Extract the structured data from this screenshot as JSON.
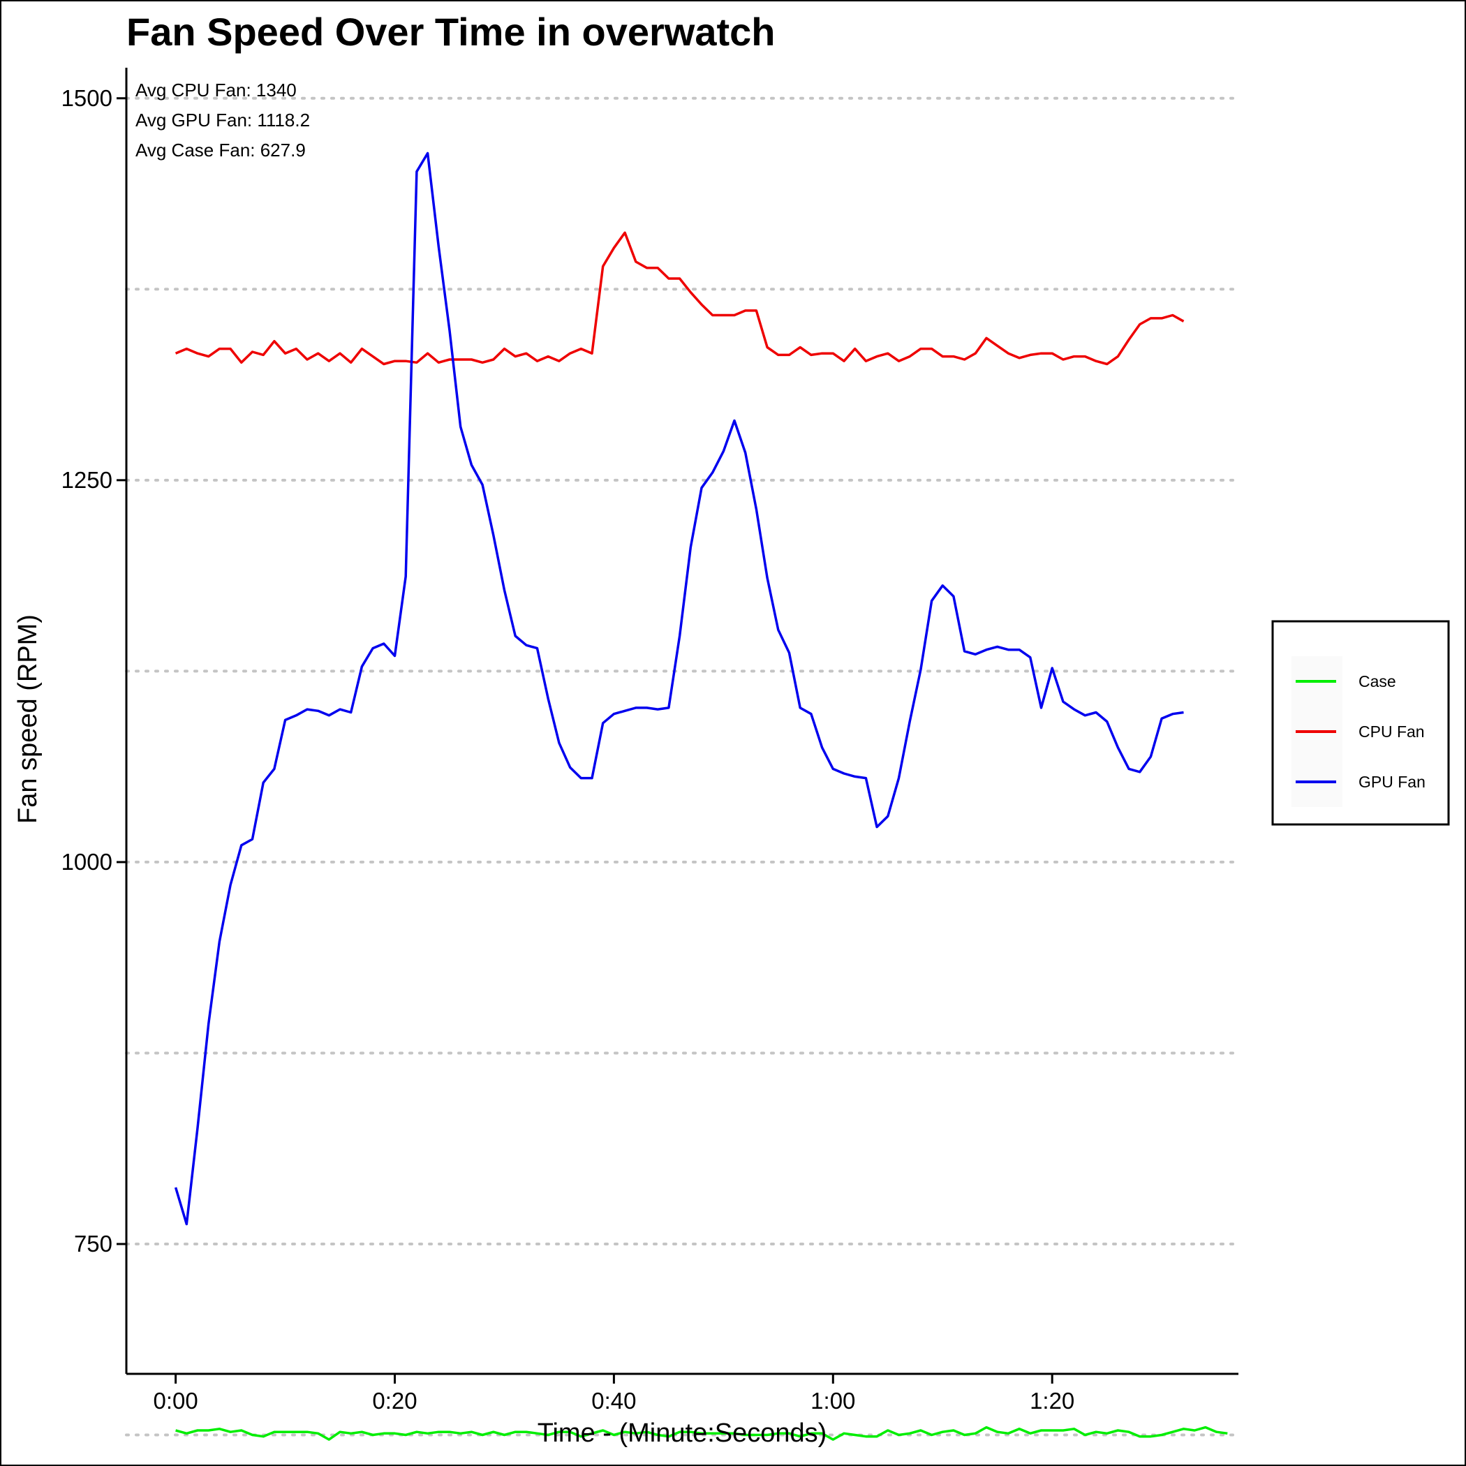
{
  "chart_data": {
    "type": "line",
    "title": "Fan Speed Over Time in overwatch",
    "xlabel": "Time - (Minute:Seconds)",
    "ylabel": "Fan speed (RPM)",
    "xlim": [
      -4.5,
      97
    ],
    "ylim": [
      665,
      1520
    ],
    "x_ticks": [
      0,
      20,
      40,
      60,
      80
    ],
    "x_tick_labels": [
      "0:00",
      "0:20",
      "0:40",
      "1:00",
      "1:20"
    ],
    "y_ticks": [
      750,
      1000,
      1250,
      1500
    ],
    "y_tick_labels": [
      "750",
      "1000",
      "1250",
      "1500"
    ],
    "y_grid_values": [
      625,
      750,
      875,
      1000,
      1125,
      1250,
      1375,
      1500
    ],
    "grid": "horizontal dotted",
    "legend_position": "right",
    "annotations": [
      "Avg CPU Fan: 1340",
      "Avg GPU Fan: 1118.2",
      "Avg Case Fan: 627.9"
    ],
    "series": [
      {
        "name": "Case",
        "color": "#00ee00",
        "points": [
          [
            0,
            628
          ],
          [
            1,
            626
          ],
          [
            2,
            628
          ],
          [
            3,
            628
          ],
          [
            4,
            629
          ],
          [
            5,
            627
          ],
          [
            6,
            628
          ],
          [
            7,
            625
          ],
          [
            8,
            624
          ],
          [
            9,
            627
          ],
          [
            10,
            627
          ],
          [
            11,
            627
          ],
          [
            12,
            627
          ],
          [
            13,
            626
          ],
          [
            14,
            622
          ],
          [
            15,
            627
          ],
          [
            16,
            626
          ],
          [
            17,
            627
          ],
          [
            18,
            625
          ],
          [
            19,
            626
          ],
          [
            20,
            626
          ],
          [
            21,
            625
          ],
          [
            22,
            627
          ],
          [
            23,
            626
          ],
          [
            24,
            627
          ],
          [
            25,
            627
          ],
          [
            26,
            626
          ],
          [
            27,
            627
          ],
          [
            28,
            625
          ],
          [
            29,
            627
          ],
          [
            30,
            625
          ],
          [
            31,
            627
          ],
          [
            32,
            627
          ],
          [
            33,
            626
          ],
          [
            34,
            625
          ],
          [
            35,
            627
          ],
          [
            36,
            627
          ],
          [
            37,
            624
          ],
          [
            38,
            626
          ],
          [
            39,
            628
          ],
          [
            40,
            625
          ],
          [
            41,
            627
          ],
          [
            42,
            626
          ],
          [
            43,
            627
          ],
          [
            44,
            625
          ],
          [
            45,
            624
          ],
          [
            46,
            627
          ],
          [
            47,
            627
          ],
          [
            48,
            626
          ],
          [
            49,
            626
          ],
          [
            50,
            626
          ],
          [
            51,
            626
          ],
          [
            52,
            625
          ],
          [
            53,
            625
          ],
          [
            54,
            625
          ],
          [
            55,
            626
          ],
          [
            56,
            626
          ],
          [
            57,
            624
          ],
          [
            58,
            626
          ],
          [
            59,
            626
          ],
          [
            60,
            622
          ],
          [
            61,
            626
          ],
          [
            62,
            625
          ],
          [
            63,
            624
          ],
          [
            64,
            624
          ],
          [
            65,
            628
          ],
          [
            66,
            625
          ],
          [
            67,
            626
          ],
          [
            68,
            628
          ],
          [
            69,
            625
          ],
          [
            70,
            627
          ],
          [
            71,
            628
          ],
          [
            72,
            625
          ],
          [
            73,
            626
          ],
          [
            74,
            630
          ],
          [
            75,
            627
          ],
          [
            76,
            626
          ],
          [
            77,
            629
          ],
          [
            78,
            626
          ],
          [
            79,
            628
          ],
          [
            80,
            628
          ],
          [
            81,
            628
          ],
          [
            82,
            629
          ],
          [
            83,
            625
          ],
          [
            84,
            627
          ],
          [
            85,
            626
          ],
          [
            86,
            628
          ],
          [
            87,
            627
          ],
          [
            88,
            624
          ],
          [
            89,
            624
          ],
          [
            90,
            625
          ],
          [
            91,
            627
          ],
          [
            92,
            629
          ],
          [
            93,
            628
          ],
          [
            94,
            630
          ],
          [
            95,
            627
          ],
          [
            96,
            626
          ]
        ]
      },
      {
        "name": "CPU Fan",
        "color": "#ee0000",
        "points": [
          [
            0,
            1333
          ],
          [
            1,
            1336
          ],
          [
            2,
            1333
          ],
          [
            3,
            1331
          ],
          [
            4,
            1336
          ],
          [
            5,
            1336
          ],
          [
            6,
            1327
          ],
          [
            7,
            1334
          ],
          [
            8,
            1332
          ],
          [
            9,
            1341
          ],
          [
            10,
            1333
          ],
          [
            11,
            1336
          ],
          [
            12,
            1329
          ],
          [
            13,
            1333
          ],
          [
            14,
            1328
          ],
          [
            15,
            1333
          ],
          [
            16,
            1327
          ],
          [
            17,
            1336
          ],
          [
            18,
            1331
          ],
          [
            19,
            1326
          ],
          [
            20,
            1328
          ],
          [
            21,
            1328
          ],
          [
            22,
            1327
          ],
          [
            23,
            1333
          ],
          [
            24,
            1327
          ],
          [
            25,
            1329
          ],
          [
            26,
            1329
          ],
          [
            27,
            1329
          ],
          [
            28,
            1327
          ],
          [
            29,
            1329
          ],
          [
            30,
            1336
          ],
          [
            31,
            1331
          ],
          [
            32,
            1333
          ],
          [
            33,
            1328
          ],
          [
            34,
            1331
          ],
          [
            35,
            1328
          ],
          [
            36,
            1333
          ],
          [
            37,
            1336
          ],
          [
            38,
            1333
          ],
          [
            39,
            1390
          ],
          [
            40,
            1402
          ],
          [
            41,
            1412
          ],
          [
            42,
            1393
          ],
          [
            43,
            1389
          ],
          [
            44,
            1389
          ],
          [
            45,
            1382
          ],
          [
            46,
            1382
          ],
          [
            47,
            1373
          ],
          [
            48,
            1365
          ],
          [
            49,
            1358
          ],
          [
            50,
            1358
          ],
          [
            51,
            1358
          ],
          [
            52,
            1361
          ],
          [
            53,
            1361
          ],
          [
            54,
            1337
          ],
          [
            55,
            1332
          ],
          [
            56,
            1332
          ],
          [
            57,
            1337
          ],
          [
            58,
            1332
          ],
          [
            59,
            1333
          ],
          [
            60,
            1333
          ],
          [
            61,
            1328
          ],
          [
            62,
            1336
          ],
          [
            63,
            1328
          ],
          [
            64,
            1331
          ],
          [
            65,
            1333
          ],
          [
            66,
            1328
          ],
          [
            67,
            1331
          ],
          [
            68,
            1336
          ],
          [
            69,
            1336
          ],
          [
            70,
            1331
          ],
          [
            71,
            1331
          ],
          [
            72,
            1329
          ],
          [
            73,
            1333
          ],
          [
            74,
            1343
          ],
          [
            75,
            1338
          ],
          [
            76,
            1333
          ],
          [
            77,
            1330
          ],
          [
            78,
            1332
          ],
          [
            79,
            1333
          ],
          [
            80,
            1333
          ],
          [
            81,
            1329
          ],
          [
            82,
            1331
          ],
          [
            83,
            1331
          ],
          [
            84,
            1328
          ],
          [
            85,
            1326
          ],
          [
            86,
            1331
          ],
          [
            87,
            1342
          ],
          [
            88,
            1352
          ],
          [
            89,
            1356
          ],
          [
            90,
            1356
          ],
          [
            91,
            1358
          ],
          [
            92,
            1354
          ]
        ]
      },
      {
        "name": "GPU Fan",
        "color": "#0000ee",
        "points": [
          [
            0,
            787
          ],
          [
            1,
            763
          ],
          [
            2,
            826
          ],
          [
            3,
            894
          ],
          [
            4,
            948
          ],
          [
            5,
            985
          ],
          [
            6,
            1011
          ],
          [
            7,
            1015
          ],
          [
            8,
            1052
          ],
          [
            9,
            1061
          ],
          [
            10,
            1093
          ],
          [
            11,
            1096
          ],
          [
            12,
            1100
          ],
          [
            13,
            1099
          ],
          [
            14,
            1096
          ],
          [
            15,
            1100
          ],
          [
            16,
            1098
          ],
          [
            17,
            1128
          ],
          [
            18,
            1140
          ],
          [
            19,
            1143
          ],
          [
            20,
            1135
          ],
          [
            21,
            1187
          ],
          [
            22,
            1452
          ],
          [
            23,
            1464
          ],
          [
            24,
            1403
          ],
          [
            25,
            1348
          ],
          [
            26,
            1285
          ],
          [
            27,
            1260
          ],
          [
            28,
            1247
          ],
          [
            29,
            1214
          ],
          [
            30,
            1178
          ],
          [
            31,
            1148
          ],
          [
            32,
            1142
          ],
          [
            33,
            1140
          ],
          [
            34,
            1107
          ],
          [
            35,
            1078
          ],
          [
            36,
            1062
          ],
          [
            37,
            1055
          ],
          [
            38,
            1055
          ],
          [
            39,
            1091
          ],
          [
            40,
            1097
          ],
          [
            41,
            1099
          ],
          [
            42,
            1101
          ],
          [
            43,
            1101
          ],
          [
            44,
            1100
          ],
          [
            45,
            1101
          ],
          [
            46,
            1148
          ],
          [
            47,
            1206
          ],
          [
            48,
            1245
          ],
          [
            49,
            1255
          ],
          [
            50,
            1269
          ],
          [
            51,
            1289
          ],
          [
            52,
            1268
          ],
          [
            53,
            1231
          ],
          [
            54,
            1186
          ],
          [
            55,
            1152
          ],
          [
            56,
            1137
          ],
          [
            57,
            1101
          ],
          [
            58,
            1097
          ],
          [
            59,
            1075
          ],
          [
            60,
            1061
          ],
          [
            61,
            1058
          ],
          [
            62,
            1056
          ],
          [
            63,
            1055
          ],
          [
            64,
            1023
          ],
          [
            65,
            1030
          ],
          [
            66,
            1055
          ],
          [
            67,
            1092
          ],
          [
            68,
            1126
          ],
          [
            69,
            1171
          ],
          [
            70,
            1181
          ],
          [
            71,
            1174
          ],
          [
            72,
            1138
          ],
          [
            73,
            1136
          ],
          [
            74,
            1139
          ],
          [
            75,
            1141
          ],
          [
            76,
            1139
          ],
          [
            77,
            1139
          ],
          [
            78,
            1134
          ],
          [
            79,
            1101
          ],
          [
            80,
            1127
          ],
          [
            81,
            1105
          ],
          [
            82,
            1100
          ],
          [
            83,
            1096
          ],
          [
            84,
            1098
          ],
          [
            85,
            1092
          ],
          [
            86,
            1075
          ],
          [
            87,
            1061
          ],
          [
            88,
            1059
          ],
          [
            89,
            1069
          ],
          [
            90,
            1094
          ],
          [
            91,
            1097
          ],
          [
            92,
            1098
          ]
        ]
      }
    ]
  }
}
